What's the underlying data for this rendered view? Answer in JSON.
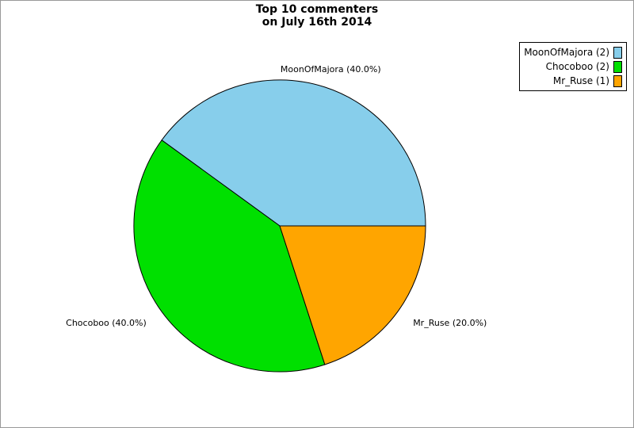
{
  "frame": {
    "border_color": "#999999",
    "background_color": "#ffffff"
  },
  "title": {
    "line1": "Top 10 commenters",
    "line2": "on July 16th 2014"
  },
  "chart_data": {
    "type": "pie",
    "title": "Top 10 commenters on July 16th 2014",
    "categories": [
      "MoonOfMajora",
      "Chocoboo",
      "Mr_Ruse"
    ],
    "values": [
      2,
      2,
      1
    ],
    "percents": [
      40.0,
      40.0,
      20.0
    ],
    "total": 5,
    "start_angle_deg": 0,
    "direction": "counterclockwise",
    "label_distance": 1.13,
    "edge_color": "#000000",
    "legend_position": "top-right",
    "slices": [
      {
        "name": "MoonOfMajora",
        "count": 2,
        "percent": 40.0,
        "color": "#87CEEB",
        "pie_label": "MoonOfMajora (40.0%)",
        "legend_label": "MoonOfMajora (2)",
        "label_align": "center"
      },
      {
        "name": "Chocoboo",
        "count": 2,
        "percent": 40.0,
        "color": "#00E000",
        "pie_label": "Chocoboo (40.0%)",
        "legend_label": "Chocoboo (2)",
        "label_align": "right"
      },
      {
        "name": "Mr_Ruse",
        "count": 1,
        "percent": 20.0,
        "color": "#FFA500",
        "pie_label": "Mr_Ruse (20.0%)",
        "legend_label": "Mr_Ruse (1)",
        "label_align": "left"
      }
    ]
  }
}
